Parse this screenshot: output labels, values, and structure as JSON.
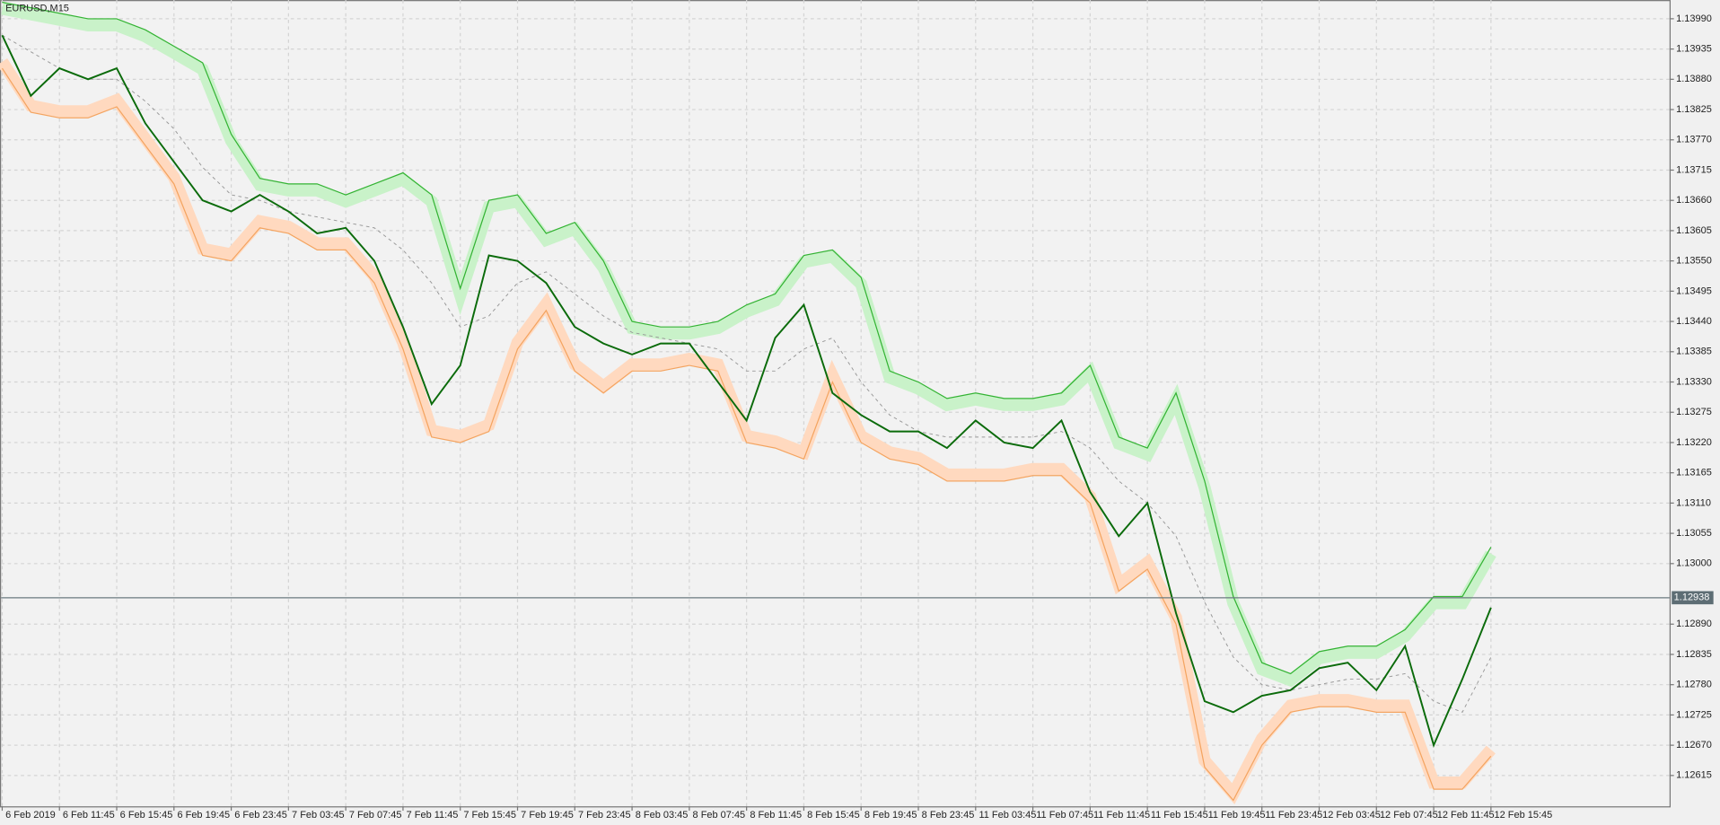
{
  "chart_data": {
    "type": "line",
    "symbol": "EURUSD,M15",
    "grid": true,
    "ylim": [
      1.12559,
      1.14024
    ],
    "yticks": [
      {
        "value": 1.1399,
        "label": "1.13990"
      },
      {
        "value": 1.13935,
        "label": "1.13935"
      },
      {
        "value": 1.1388,
        "label": "1.13880"
      },
      {
        "value": 1.13825,
        "label": "1.13825"
      },
      {
        "value": 1.1377,
        "label": "1.13770"
      },
      {
        "value": 1.13715,
        "label": "1.13715"
      },
      {
        "value": 1.1366,
        "label": "1.13660"
      },
      {
        "value": 1.13605,
        "label": "1.13605"
      },
      {
        "value": 1.1355,
        "label": "1.13550"
      },
      {
        "value": 1.13495,
        "label": "1.13495"
      },
      {
        "value": 1.1344,
        "label": "1.13440"
      },
      {
        "value": 1.13385,
        "label": "1.13385"
      },
      {
        "value": 1.1333,
        "label": "1.13330"
      },
      {
        "value": 1.13275,
        "label": "1.13275"
      },
      {
        "value": 1.1322,
        "label": "1.13220"
      },
      {
        "value": 1.13165,
        "label": "1.13165"
      },
      {
        "value": 1.1311,
        "label": "1.13110"
      },
      {
        "value": 1.13055,
        "label": "1.13055"
      },
      {
        "value": 1.13,
        "label": "1.13000"
      },
      {
        "value": 1.1289,
        "label": "1.12890"
      },
      {
        "value": 1.12835,
        "label": "1.12835"
      },
      {
        "value": 1.1278,
        "label": "1.12780"
      },
      {
        "value": 1.12725,
        "label": "1.12725"
      },
      {
        "value": 1.1267,
        "label": "1.12670"
      },
      {
        "value": 1.12615,
        "label": "1.12615"
      }
    ],
    "current_price": {
      "value": 1.12938,
      "label": "1.12938"
    },
    "categories": [
      "6 Feb 2019",
      null,
      "6 Feb 11:45",
      null,
      "6 Feb 15:45",
      null,
      "6 Feb 19:45",
      null,
      "6 Feb 23:45",
      null,
      "7 Feb 03:45",
      null,
      "7 Feb 07:45",
      null,
      "7 Feb 11:45",
      null,
      "7 Feb 15:45",
      null,
      "7 Feb 19:45",
      null,
      "7 Feb 23:45",
      null,
      "8 Feb 03:45",
      null,
      "8 Feb 07:45",
      null,
      "8 Feb 11:45",
      null,
      "8 Feb 15:45",
      null,
      "8 Feb 19:45",
      null,
      "8 Feb 23:45",
      null,
      "11 Feb 03:45",
      null,
      "11 Feb 07:45",
      null,
      "11 Feb 11:45",
      null,
      "11 Feb 15:45",
      null,
      "11 Feb 19:45",
      null,
      "11 Feb 23:45",
      null,
      "12 Feb 03:45",
      null,
      "12 Feb 07:45",
      null,
      "12 Feb 11:45",
      null,
      "12 Feb 15:45"
    ],
    "series": [
      {
        "style": "upper-band",
        "color": "#33b333",
        "values": [
          1.1402,
          1.1401,
          1.14,
          1.1399,
          1.1399,
          1.1397,
          1.1394,
          1.1391,
          1.1378,
          1.137,
          1.1369,
          1.1369,
          1.1367,
          1.1369,
          1.1371,
          1.1367,
          1.135,
          1.1366,
          1.1367,
          1.136,
          1.1362,
          1.1355,
          1.1344,
          1.1343,
          1.1343,
          1.1344,
          1.1347,
          1.1349,
          1.1356,
          1.1357,
          1.1352,
          1.1335,
          1.1333,
          1.133,
          1.1331,
          1.133,
          1.133,
          1.1331,
          1.1336,
          1.1323,
          1.1321,
          1.1331,
          1.1315,
          1.1294,
          1.1282,
          1.128,
          1.1284,
          1.1285,
          1.1285,
          1.1288,
          1.1294,
          1.1294,
          1.1303
        ]
      },
      {
        "style": "lower-band",
        "color": "#f4a460",
        "values": [
          1.139,
          1.1382,
          1.1381,
          1.1381,
          1.1383,
          1.1376,
          1.1369,
          1.1356,
          1.1355,
          1.1361,
          1.136,
          1.1357,
          1.1357,
          1.1351,
          1.1339,
          1.1323,
          1.1322,
          1.1324,
          1.1339,
          1.1346,
          1.1335,
          1.1331,
          1.1335,
          1.1335,
          1.1336,
          1.1335,
          1.1322,
          1.1321,
          1.1319,
          1.1333,
          1.1322,
          1.1319,
          1.1318,
          1.1315,
          1.1315,
          1.1315,
          1.1316,
          1.1316,
          1.1311,
          1.1295,
          1.1299,
          1.1289,
          1.1263,
          1.1257,
          1.1267,
          1.1273,
          1.1274,
          1.1274,
          1.1273,
          1.1273,
          1.1259,
          1.1259,
          1.1265
        ]
      },
      {
        "style": "dashed",
        "color": "#999999",
        "values": [
          1.1396,
          1.1393,
          1.139,
          1.1388,
          1.1388,
          1.1384,
          1.1379,
          1.1372,
          1.1367,
          1.1366,
          1.1364,
          1.1363,
          1.1362,
          1.1361,
          1.1357,
          1.1351,
          1.1343,
          1.1345,
          1.1351,
          1.1353,
          1.1349,
          1.1345,
          1.1342,
          1.1341,
          1.134,
          1.1339,
          1.1335,
          1.1335,
          1.1339,
          1.1341,
          1.1333,
          1.1327,
          1.1324,
          1.1323,
          1.1323,
          1.1323,
          1.1323,
          1.1324,
          1.1321,
          1.1315,
          1.1311,
          1.1305,
          1.1293,
          1.1283,
          1.1278,
          1.1277,
          1.1278,
          1.1279,
          1.1279,
          1.128,
          1.1275,
          1.1273,
          1.1283
        ]
      },
      {
        "style": "price",
        "color": "#0b6b0b",
        "values": [
          1.1396,
          1.1385,
          1.139,
          1.1388,
          1.139,
          1.138,
          1.1373,
          1.1366,
          1.1364,
          1.1367,
          1.1364,
          1.136,
          1.1361,
          1.1355,
          1.1343,
          1.1329,
          1.1336,
          1.1356,
          1.1355,
          1.1351,
          1.1343,
          1.134,
          1.1338,
          1.134,
          1.134,
          1.1333,
          1.1326,
          1.1341,
          1.1347,
          1.1331,
          1.1327,
          1.1324,
          1.1324,
          1.1321,
          1.1326,
          1.1322,
          1.1321,
          1.1326,
          1.1313,
          1.1305,
          1.1311,
          1.1291,
          1.1275,
          1.1273,
          1.1276,
          1.1277,
          1.1281,
          1.1282,
          1.1277,
          1.1285,
          1.1267,
          1.1279,
          1.1292
        ]
      }
    ]
  }
}
